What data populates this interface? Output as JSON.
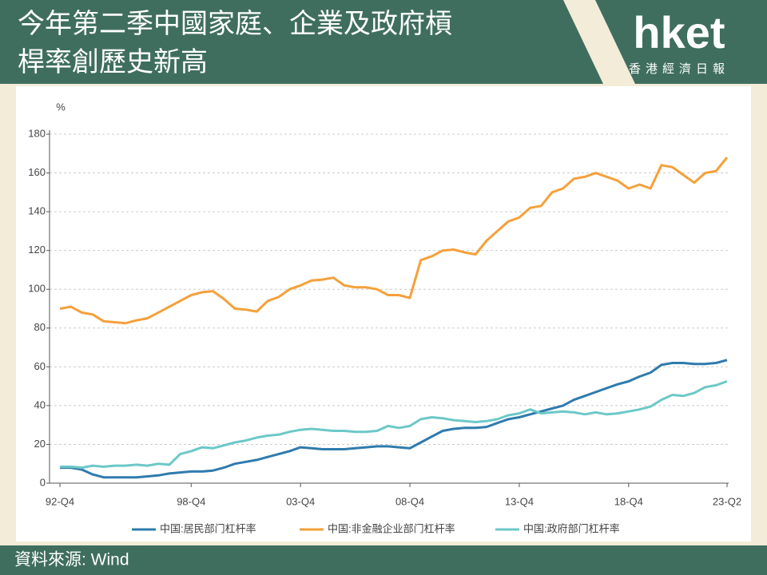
{
  "header": {
    "title": [
      "今年第二季中國家庭、企業及政府槓",
      "桿率創歷史新高"
    ],
    "logo": "hket",
    "logo_sub": "香港經濟日報"
  },
  "footer": {
    "source": "資料來源: Wind"
  },
  "chart_data": {
    "type": "line",
    "y_label": "%",
    "categories": [
      "92-Q4",
      null,
      null,
      null,
      null,
      null,
      null,
      null,
      null,
      null,
      null,
      null,
      "98-Q4",
      null,
      null,
      null,
      null,
      null,
      null,
      null,
      null,
      null,
      "03-Q4",
      null,
      null,
      null,
      null,
      null,
      null,
      null,
      null,
      null,
      "08-Q4",
      null,
      null,
      null,
      null,
      null,
      null,
      null,
      null,
      null,
      "13-Q4",
      null,
      null,
      null,
      null,
      null,
      null,
      null,
      null,
      null,
      "18-Q4",
      null,
      null,
      null,
      null,
      null,
      null,
      null,
      null,
      "23-Q2"
    ],
    "ylim": [
      0,
      180
    ],
    "yticks": [
      0,
      20,
      40,
      60,
      80,
      100,
      120,
      140,
      160,
      180
    ],
    "grid": true,
    "series": [
      {
        "name": "中国:居民部门杠杆率",
        "color": "#2f7bad",
        "values": [
          8,
          8,
          7,
          4.5,
          3,
          3,
          3,
          3,
          3.5,
          4,
          5,
          5.5,
          6,
          6,
          6.5,
          8,
          10,
          11,
          12,
          13.5,
          15,
          16.5,
          18.5,
          18,
          17.5,
          17.5,
          17.5,
          18,
          18.5,
          19,
          19,
          18.5,
          18,
          21,
          24,
          27,
          28,
          28.5,
          28.5,
          29,
          31,
          33,
          34,
          35.5,
          37,
          38.5,
          40,
          43,
          45,
          47,
          49,
          51,
          52.5,
          55,
          57,
          61,
          62,
          62,
          61.5,
          61.5,
          62,
          63.5
        ]
      },
      {
        "name": "中国:非金融企业部门杠杆率",
        "color": "#f5a03a",
        "values": [
          90,
          91,
          88,
          87,
          83.5,
          83,
          82.5,
          84,
          85,
          88,
          91,
          94,
          97,
          98.5,
          99,
          95,
          90,
          89.5,
          88.5,
          94,
          96,
          100,
          102,
          104.5,
          105,
          106,
          102,
          101,
          101,
          100,
          97,
          97,
          95.5,
          115,
          117,
          120,
          120.5,
          119,
          118,
          125,
          130,
          135,
          137,
          142,
          143,
          150,
          152,
          157,
          158,
          160,
          158,
          156,
          152,
          154,
          152,
          164,
          163,
          159,
          155,
          160,
          161,
          168
        ]
      },
      {
        "name": "中国:政府部门杠杆率",
        "color": "#6cc8c8",
        "values": [
          8.5,
          8.5,
          8,
          9,
          8.5,
          9,
          9,
          9.5,
          9,
          10,
          9.5,
          15,
          16.5,
          18.5,
          18,
          19.5,
          21,
          22,
          23.5,
          24.5,
          25,
          26.5,
          27.5,
          28,
          27.5,
          27,
          27,
          26.5,
          26.5,
          27,
          29.5,
          28.5,
          29.5,
          33,
          34,
          33.5,
          32.5,
          32,
          31.5,
          32,
          33,
          35,
          36,
          38,
          36,
          36.5,
          37,
          36.5,
          35.5,
          36.5,
          35.5,
          36,
          37,
          38,
          39.5,
          43,
          45.5,
          45,
          46.5,
          49.5,
          50.5,
          52.5
        ]
      }
    ]
  }
}
